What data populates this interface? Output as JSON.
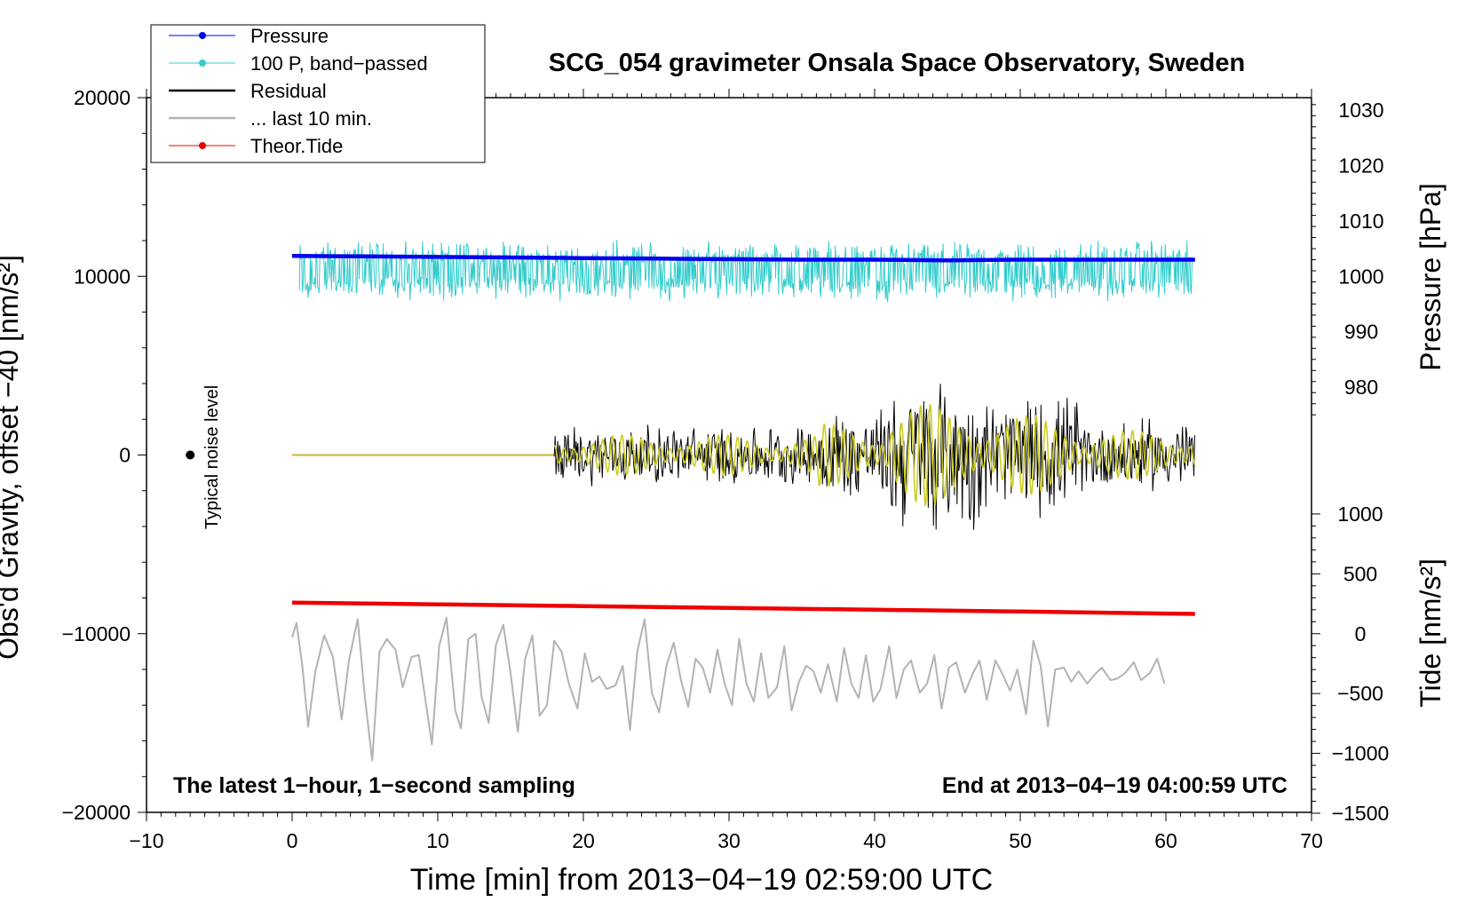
{
  "chart_data": {
    "type": "line",
    "title": "SCG_054 gravimeter Onsala Space Observatory, Sweden",
    "xlabel": "Time [min] from 2013−04−19 02:59:00 UTC",
    "ylabel_left": "Obs'd Gravity, offset −40 [nm/s²]",
    "ylabel_right_pressure": "Pressure [hPa]",
    "ylabel_right_tide": "Tide [nm/s²]",
    "xlim": [
      -10,
      70
    ],
    "ylim_left": [
      -20000,
      20000
    ],
    "x_ticks": [
      {
        "value": -10,
        "label": "−10"
      },
      {
        "value": 0,
        "label": "0"
      },
      {
        "value": 10,
        "label": "10"
      },
      {
        "value": 20,
        "label": "20"
      },
      {
        "value": 30,
        "label": "30"
      },
      {
        "value": 40,
        "label": "40"
      },
      {
        "value": 50,
        "label": "50"
      },
      {
        "value": 60,
        "label": "60"
      },
      {
        "value": 70,
        "label": "70"
      }
    ],
    "y_ticks_left": [
      {
        "value": 20000,
        "label": "20000"
      },
      {
        "value": 10000,
        "label": "10000"
      },
      {
        "value": 0,
        "label": "0"
      },
      {
        "value": -10000,
        "label": "−10000"
      },
      {
        "value": -20000,
        "label": "−20000"
      }
    ],
    "pressure_axis": {
      "map_left_at": 1000,
      "left_per_hpa": 310,
      "ticks": [
        {
          "value": 1030,
          "label": "1030"
        },
        {
          "value": 1020,
          "label": "1020"
        },
        {
          "value": 1010,
          "label": "1010"
        },
        {
          "value": 1000,
          "label": "1000"
        },
        {
          "value": 990,
          "label": "990"
        },
        {
          "value": 980,
          "label": "980"
        }
      ]
    },
    "tide_axis": {
      "map_left_at_zero": -10000,
      "left_per_unit": 6.7,
      "ticks": [
        {
          "value": 1000,
          "label": "1000"
        },
        {
          "value": 500,
          "label": "500"
        },
        {
          "value": 0,
          "label": "0"
        },
        {
          "value": -500,
          "label": "−500"
        },
        {
          "value": -1000,
          "label": "−1000"
        },
        {
          "value": -1500,
          "label": "−1500"
        }
      ]
    },
    "legend": {
      "position": "top-left",
      "entries": [
        {
          "label": "Pressure",
          "color": "#0000ee",
          "marker": true
        },
        {
          "label": "100 P, band−passed",
          "color": "#33cccc",
          "marker": true
        },
        {
          "label": "Residual",
          "color": "#000000",
          "marker": false
        },
        {
          "label": "... last 10 min.",
          "color": "#b3b3b3",
          "marker": false
        },
        {
          "label": "Theor.Tide",
          "color": "#ee0000",
          "marker": true
        }
      ]
    },
    "annotations": {
      "noise_label": "Typical noise level",
      "noise_point": {
        "x": -7,
        "y": 0
      },
      "bottom_left": "The latest 1−hour, 1−second sampling",
      "bottom_right": "End at 2013−04−19 04:00:59 UTC"
    },
    "series": [
      {
        "name": "Pressure",
        "color": "#0000ee",
        "x": [
          0,
          5,
          10,
          15,
          20,
          25,
          30,
          35,
          40,
          45,
          50,
          55,
          60,
          62
        ],
        "y": [
          1003.7,
          1003.6,
          1003.5,
          1003.4,
          1003.3,
          1003.2,
          1003.1,
          1003.0,
          1003.0,
          1002.9,
          1003.0,
          1003.0,
          1003.0,
          1003.0
        ]
      },
      {
        "name": "Theor.Tide",
        "color": "#ee0000",
        "x": [
          0,
          10,
          20,
          30,
          40,
          50,
          60,
          62
        ],
        "y": [
          260,
          245,
          230,
          215,
          200,
          185,
          168,
          165
        ]
      },
      {
        "name": "... last 10 min.",
        "color": "#b3b3b3",
        "x": [
          0,
          0.3,
          0.7,
          1.1,
          1.6,
          2.2,
          2.8,
          3.4,
          3.9,
          4.5,
          5.0,
          5.5,
          6.0,
          6.5,
          7.1,
          7.6,
          8.2,
          8.7,
          9.1,
          9.6,
          10.1,
          10.6,
          11.2,
          11.6,
          12.1,
          12.6,
          13.0,
          13.5,
          14.0,
          14.5,
          15.0,
          15.5,
          16.0,
          16.5,
          17.0,
          17.5,
          18.0,
          18.5,
          19.0,
          19.6,
          20.1,
          20.6,
          21.1,
          21.6,
          22.2,
          22.7,
          23.2,
          23.7,
          24.2,
          24.7,
          25.2,
          25.7,
          26.2,
          26.7,
          27.2,
          27.7,
          28.2,
          28.7,
          29.2,
          29.7,
          30.2,
          30.7,
          31.2,
          31.7,
          32.2,
          32.7,
          33.3,
          33.8,
          34.3,
          34.8,
          35.3,
          35.8,
          36.3,
          36.8,
          37.4,
          37.9,
          38.4,
          38.9,
          39.4,
          39.9,
          40.4,
          41.0,
          41.5,
          42.0,
          42.5,
          43.1,
          43.6,
          44.1,
          44.6,
          45.1,
          45.6,
          46.2,
          46.7,
          47.2,
          47.7,
          48.3,
          48.8,
          49.3,
          49.8,
          50.4,
          50.9,
          51.4,
          51.9,
          52.4,
          53.0,
          53.5,
          54.0,
          54.6,
          55.1,
          55.6,
          56.2,
          56.7,
          57.2,
          57.8,
          58.3,
          58.9,
          59.4,
          59.9
        ],
        "y": [
          -10200,
          -9400,
          -11800,
          -15200,
          -12100,
          -10100,
          -11300,
          -14800,
          -11500,
          -9200,
          -13600,
          -17100,
          -11000,
          -10300,
          -10900,
          -13000,
          -11300,
          -11200,
          -13400,
          -16200,
          -10700,
          -9100,
          -14300,
          -15300,
          -10300,
          -10000,
          -13500,
          -15000,
          -10600,
          -9500,
          -12200,
          -15500,
          -11400,
          -10100,
          -14600,
          -14000,
          -10400,
          -11000,
          -12800,
          -14200,
          -11100,
          -12700,
          -12400,
          -13100,
          -12900,
          -11800,
          -15400,
          -11000,
          -9200,
          -13300,
          -14400,
          -11800,
          -10500,
          -12600,
          -14100,
          -11400,
          -11900,
          -13300,
          -10900,
          -12800,
          -14000,
          -10300,
          -12800,
          -13800,
          -11100,
          -13600,
          -13000,
          -10700,
          -14300,
          -12700,
          -11800,
          -12100,
          -13300,
          -11700,
          -13800,
          -10800,
          -12800,
          -13600,
          -11200,
          -13800,
          -13100,
          -10700,
          -13600,
          -12000,
          -11500,
          -13300,
          -12800,
          -11200,
          -14200,
          -11900,
          -11600,
          -13300,
          -12300,
          -11500,
          -13700,
          -11500,
          -12300,
          -13200,
          -12000,
          -14500,
          -10400,
          -11800,
          -15200,
          -12000,
          -11900,
          -12700,
          -12100,
          -12800,
          -12300,
          -11900,
          -12600,
          -12500,
          -12200,
          -11600,
          -12600,
          -12200,
          -11400,
          -12800
        ]
      }
    ],
    "pressure_bandpassed_envelope": {
      "name": "100 P, band−passed",
      "color": "#33cccc",
      "x_start": 0.5,
      "x_end": 61.8,
      "center": 10300,
      "amplitude_range": [
        8000,
        12100
      ]
    },
    "residual_envelope": {
      "name": "Residual",
      "color": "#000000",
      "filtered_color": "#cccc22",
      "quiet_until": 18,
      "x_end": 62,
      "segments": [
        {
          "x0": 18,
          "x1": 36,
          "amplitude": 1800
        },
        {
          "x0": 36,
          "x1": 41,
          "amplitude": 2800
        },
        {
          "x0": 41,
          "x1": 47,
          "amplitude": 4600
        },
        {
          "x0": 47,
          "x1": 54,
          "amplitude": 3600
        },
        {
          "x0": 54,
          "x1": 62,
          "amplitude": 2200
        }
      ]
    }
  }
}
